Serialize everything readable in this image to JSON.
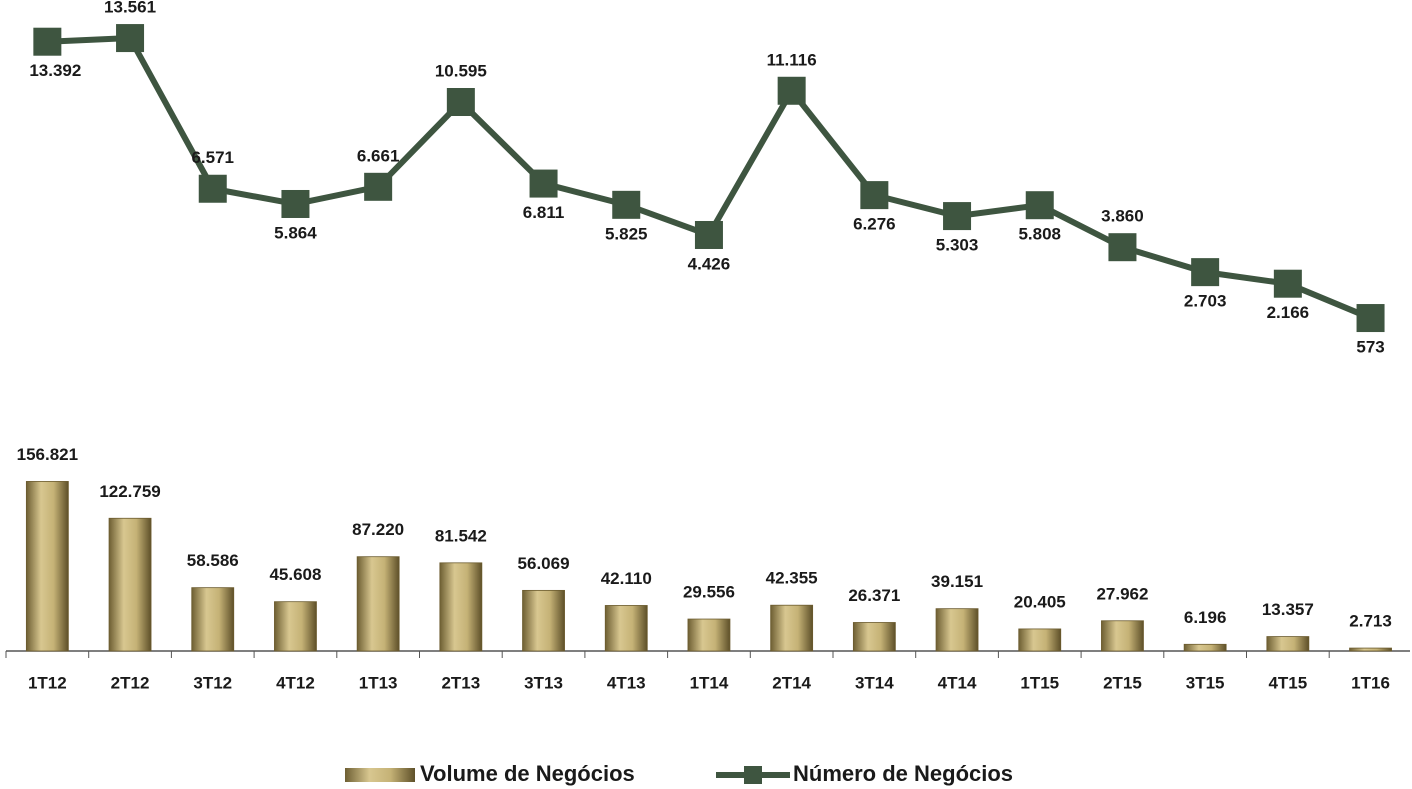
{
  "chart_data": {
    "type": "bar",
    "categories": [
      "1T12",
      "2T12",
      "3T12",
      "4T12",
      "1T13",
      "2T13",
      "3T13",
      "4T13",
      "1T14",
      "2T14",
      "3T14",
      "4T14",
      "1T15",
      "2T15",
      "3T15",
      "4T15",
      "1T16"
    ],
    "series": [
      {
        "name": "Volume de Negócios",
        "type": "bar",
        "color": "#b09a5e",
        "values": [
          156821,
          122759,
          58586,
          45608,
          87220,
          81542,
          56069,
          42110,
          29556,
          42355,
          26371,
          39151,
          20405,
          27962,
          6196,
          13357,
          2713
        ],
        "value_labels": [
          "156.821",
          "122.759",
          "58.586",
          "45.608",
          "87.220",
          "81.542",
          "56.069",
          "42.110",
          "29.556",
          "42.355",
          "26.371",
          "39.151",
          "20.405",
          "27.962",
          "6.196",
          "13.357",
          "2.713"
        ]
      },
      {
        "name": "Número de Negócios",
        "type": "line",
        "axis": "y2",
        "color": "#3e5540",
        "values": [
          13392,
          13561,
          6571,
          5864,
          6661,
          10595,
          6811,
          5825,
          4426,
          11116,
          6276,
          5303,
          5808,
          3860,
          2703,
          2166,
          573
        ],
        "value_labels": [
          "13.392",
          "13.561",
          "6.571",
          "5.864",
          "6.661",
          "10.595",
          "6.811",
          "5.825",
          "4.426",
          "11.116",
          "6.276",
          "5.303",
          "5.808",
          "3.860",
          "2.703",
          "2.166",
          "573"
        ]
      }
    ],
    "ylim": [
      0,
      160000
    ],
    "y2lim": [
      0,
      14000
    ],
    "legend": "bottom"
  }
}
